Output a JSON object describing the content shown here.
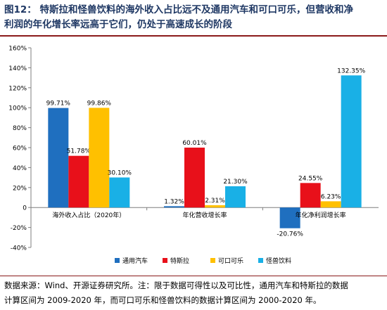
{
  "figure": {
    "title_line1": "图12：  特斯拉和怪兽饮料的海外收入占比远不及通用汽车和可口可乐，但营收和净",
    "title_line2": "利润的年化增长率远高于它们，仍处于高速成长的阶段",
    "source_line1": "数据来源：Wind、开源证券研究所。注：限于数据可得性以及可比性，通用汽车和特斯拉的数据",
    "source_line2": "计算区间为 2009-2020 年，而可口可乐和怪兽饮料的数据计算区间为 2000-2020 年。"
  },
  "chart_data": {
    "type": "bar",
    "title": "",
    "xlabel": "",
    "ylabel": "",
    "categories": [
      "海外收入占比（2020年）",
      "年化营收增长率",
      "年化净利润增长率"
    ],
    "series": [
      {
        "name": "通用汽车",
        "color": "#1f6fbf",
        "values": [
          99.71,
          1.32,
          -20.76
        ],
        "labels": [
          "99.71%",
          "1.32%",
          "-20.76%"
        ]
      },
      {
        "name": "特斯拉",
        "color": "#e8101a",
        "values": [
          51.78,
          60.01,
          24.55
        ],
        "labels": [
          "51.78%",
          "60.01%",
          "24.55%"
        ]
      },
      {
        "name": "可口可乐",
        "color": "#ffc000",
        "values": [
          99.86,
          2.31,
          6.23
        ],
        "labels": [
          "99.86%",
          "2.31%",
          "6.23%"
        ]
      },
      {
        "name": "怪兽饮料",
        "color": "#19b0e6",
        "values": [
          30.1,
          21.3,
          132.35
        ],
        "labels": [
          "30.10%",
          "21.30%",
          "132.35%"
        ]
      }
    ],
    "y_ticks": [
      160,
      140,
      120,
      100,
      80,
      60,
      40,
      20,
      0,
      -20,
      -40
    ],
    "y_tick_labels": [
      "160%",
      "140%",
      "120%",
      "100%",
      "80%",
      "60%",
      "40%",
      "20%",
      "0",
      "-20%",
      "-40%"
    ],
    "ylim": [
      -40,
      160
    ],
    "grid": false,
    "legend_position": "bottom"
  }
}
